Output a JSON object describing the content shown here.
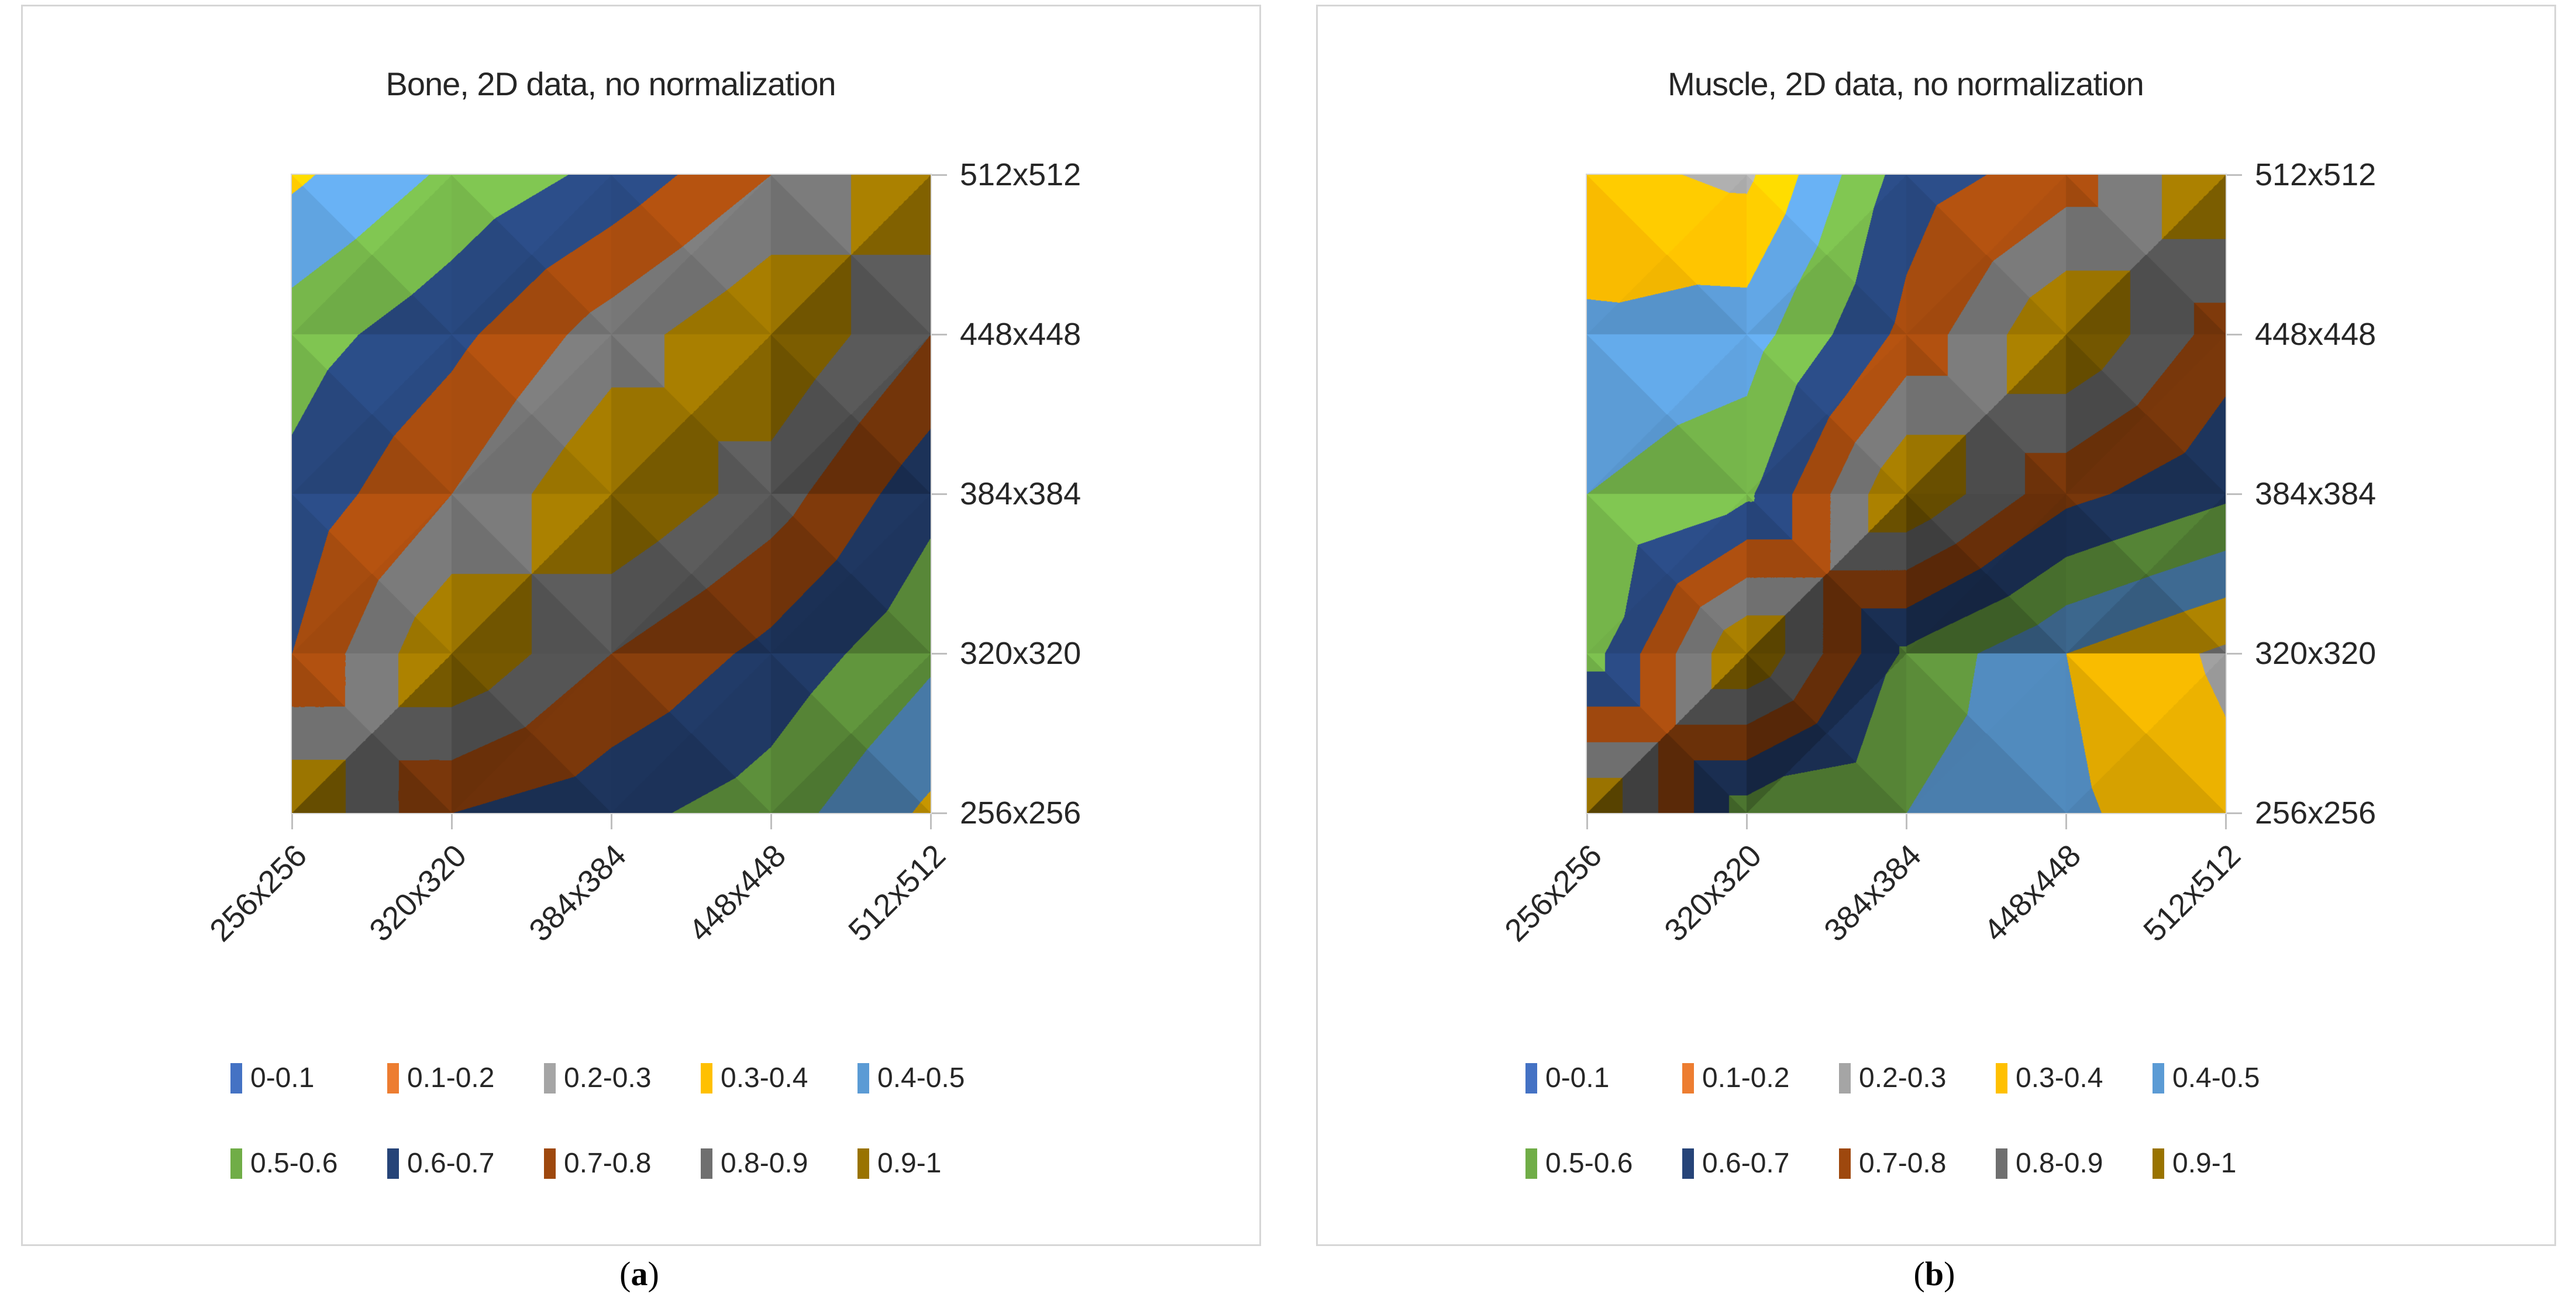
{
  "figure": {
    "panels": [
      {
        "key": "bone",
        "title": "Bone, 2D data, no normalization",
        "caption": {
          "open": "(",
          "letter": "a",
          "close": ")"
        }
      },
      {
        "key": "muscle",
        "title": "Muscle, 2D data, no normalization",
        "caption": {
          "open": "(",
          "letter": "b",
          "close": ")"
        }
      }
    ]
  },
  "chart_data": [
    {
      "type": "heatmap",
      "subtype": "excel-surface-contour",
      "title": "Bone, 2D data, no normalization",
      "x_categories": [
        "256x256",
        "320x320",
        "384x384",
        "448x448",
        "512x512"
      ],
      "y_categories_bottom_to_top": [
        "256x256",
        "320x320",
        "384x384",
        "448x448",
        "512x512"
      ],
      "y_axis_labels_top_to_bottom": [
        "512x512",
        "448x448",
        "384x384",
        "320x320",
        "256x256"
      ],
      "value_range": [
        0,
        1
      ],
      "values_rows_bottom_to_top": [
        [
          1.0,
          0.7,
          0.63,
          0.55,
          0.38
        ],
        [
          0.7,
          1.0,
          0.8,
          0.67,
          0.52
        ],
        [
          0.63,
          0.8,
          1.0,
          0.85,
          0.63
        ],
        [
          0.55,
          0.67,
          0.85,
          1.0,
          0.8
        ],
        [
          0.38,
          0.52,
          0.63,
          0.8,
          1.0
        ]
      ],
      "bands": [
        {
          "range": "0-0.1",
          "color": "#4472C4"
        },
        {
          "range": "0.1-0.2",
          "color": "#ED7D31"
        },
        {
          "range": "0.2-0.3",
          "color": "#A5A5A5"
        },
        {
          "range": "0.3-0.4",
          "color": "#FFC000"
        },
        {
          "range": "0.4-0.5",
          "color": "#5B9BD5"
        },
        {
          "range": "0.5-0.6",
          "color": "#70AD47"
        },
        {
          "range": "0.6-0.7",
          "color": "#264478"
        },
        {
          "range": "0.7-0.8",
          "color": "#9E480E"
        },
        {
          "range": "0.8-0.9",
          "color": "#6F6F6F"
        },
        {
          "range": "0.9-1",
          "color": "#997300"
        }
      ],
      "legend_position": "bottom"
    },
    {
      "type": "heatmap",
      "subtype": "excel-surface-contour",
      "title": "Muscle, 2D data, no normalization",
      "x_categories": [
        "256x256",
        "320x320",
        "384x384",
        "448x448",
        "512x512"
      ],
      "y_categories_bottom_to_top": [
        "256x256",
        "320x320",
        "384x384",
        "448x448",
        "512x512"
      ],
      "y_axis_labels_top_to_bottom": [
        "512x512",
        "448x448",
        "384x384",
        "320x320",
        "256x256"
      ],
      "value_range": [
        0,
        1
      ],
      "values_rows_bottom_to_top": [
        [
          1.0,
          0.55,
          0.5,
          0.42,
          0.33
        ],
        [
          0.55,
          1.0,
          0.58,
          0.4,
          0.28
        ],
        [
          0.5,
          0.58,
          1.0,
          0.73,
          0.62
        ],
        [
          0.42,
          0.45,
          0.73,
          1.0,
          0.75
        ],
        [
          0.33,
          0.28,
          0.65,
          0.75,
          1.0
        ]
      ],
      "bands": [
        {
          "range": "0-0.1",
          "color": "#4472C4"
        },
        {
          "range": "0.1-0.2",
          "color": "#ED7D31"
        },
        {
          "range": "0.2-0.3",
          "color": "#A5A5A5"
        },
        {
          "range": "0.3-0.4",
          "color": "#FFC000"
        },
        {
          "range": "0.4-0.5",
          "color": "#5B9BD5"
        },
        {
          "range": "0.5-0.6",
          "color": "#70AD47"
        },
        {
          "range": "0.6-0.7",
          "color": "#264478"
        },
        {
          "range": "0.7-0.8",
          "color": "#9E480E"
        },
        {
          "range": "0.8-0.9",
          "color": "#6F6F6F"
        },
        {
          "range": "0.9-1",
          "color": "#997300"
        }
      ],
      "legend_position": "bottom"
    }
  ]
}
